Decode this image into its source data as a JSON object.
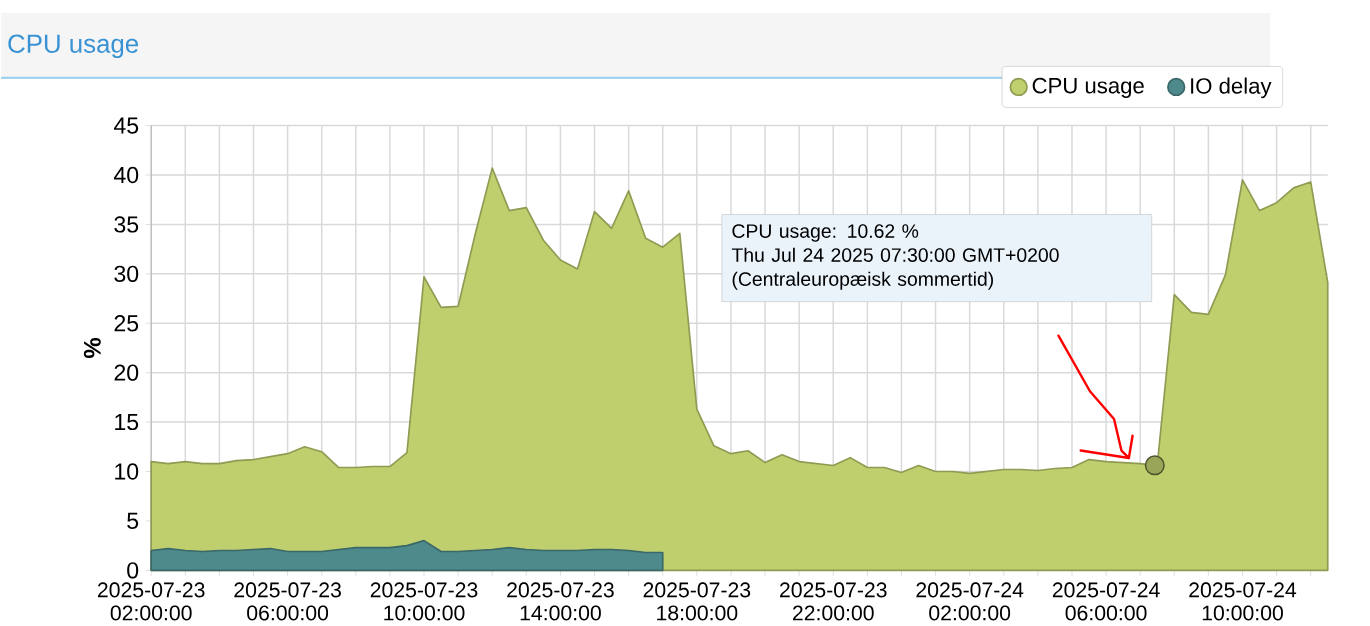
{
  "chart_data": {
    "type": "area",
    "title": "CPU usage",
    "ylabel": "%",
    "x": [
      "2025-07-23T02:00",
      "2025-07-23T02:30",
      "2025-07-23T03:00",
      "2025-07-23T03:30",
      "2025-07-23T04:00",
      "2025-07-23T04:30",
      "2025-07-23T05:00",
      "2025-07-23T05:30",
      "2025-07-23T06:00",
      "2025-07-23T06:30",
      "2025-07-23T07:00",
      "2025-07-23T07:30",
      "2025-07-23T08:00",
      "2025-07-23T08:30",
      "2025-07-23T09:00",
      "2025-07-23T09:30",
      "2025-07-23T10:00",
      "2025-07-23T10:30",
      "2025-07-23T11:00",
      "2025-07-23T11:30",
      "2025-07-23T12:00",
      "2025-07-23T12:30",
      "2025-07-23T13:00",
      "2025-07-23T13:30",
      "2025-07-23T14:00",
      "2025-07-23T14:30",
      "2025-07-23T15:00",
      "2025-07-23T15:30",
      "2025-07-23T16:00",
      "2025-07-23T16:30",
      "2025-07-23T17:00",
      "2025-07-23T17:30",
      "2025-07-23T18:00",
      "2025-07-23T18:30",
      "2025-07-23T19:00",
      "2025-07-23T19:30",
      "2025-07-23T20:00",
      "2025-07-23T20:30",
      "2025-07-23T21:00",
      "2025-07-23T21:30",
      "2025-07-23T22:00",
      "2025-07-23T22:30",
      "2025-07-23T23:00",
      "2025-07-23T23:30",
      "2025-07-24T00:00",
      "2025-07-24T00:30",
      "2025-07-24T01:00",
      "2025-07-24T01:30",
      "2025-07-24T02:00",
      "2025-07-24T02:30",
      "2025-07-24T03:00",
      "2025-07-24T03:30",
      "2025-07-24T04:00",
      "2025-07-24T04:30",
      "2025-07-24T05:00",
      "2025-07-24T05:30",
      "2025-07-24T06:00",
      "2025-07-24T06:30",
      "2025-07-24T07:00",
      "2025-07-24T07:30",
      "2025-07-24T08:00",
      "2025-07-24T08:30",
      "2025-07-24T09:00",
      "2025-07-24T09:30",
      "2025-07-24T10:00",
      "2025-07-24T10:30",
      "2025-07-24T11:00",
      "2025-07-24T11:30",
      "2025-07-24T12:00",
      "2025-07-24T12:30"
    ],
    "series": [
      {
        "name": "CPU usage",
        "color": "#bfcf6e",
        "values": [
          11.0,
          10.8,
          11.0,
          10.8,
          10.8,
          11.1,
          11.2,
          11.5,
          11.8,
          12.5,
          12.0,
          10.4,
          10.4,
          10.5,
          10.5,
          11.9,
          29.7,
          26.6,
          26.7,
          34.0,
          40.7,
          36.4,
          36.7,
          33.4,
          31.4,
          30.5,
          36.3,
          34.6,
          38.4,
          33.6,
          32.7,
          34.1,
          16.3,
          12.6,
          11.8,
          12.1,
          10.9,
          11.7,
          11.0,
          10.8,
          10.6,
          11.4,
          10.4,
          10.4,
          9.9,
          10.6,
          10.0,
          10.0,
          9.8,
          10.0,
          10.2,
          10.2,
          10.1,
          10.3,
          10.4,
          11.2,
          11.0,
          10.9,
          10.8,
          10.62,
          27.9,
          26.1,
          25.9,
          29.9,
          39.5,
          36.4,
          37.2,
          38.7,
          39.3,
          29.1
        ]
      },
      {
        "name": "IO delay",
        "color": "#4e8a8c",
        "values": [
          2.0,
          2.2,
          2.0,
          1.9,
          2.0,
          2.0,
          2.1,
          2.2,
          1.9,
          1.9,
          1.9,
          2.1,
          2.3,
          2.3,
          2.3,
          2.5,
          3.0,
          1.9,
          1.9,
          2.0,
          2.1,
          2.3,
          2.1,
          2.0,
          2.0,
          2.0,
          2.1,
          2.1,
          2.0,
          1.8,
          1.8,
          null,
          null,
          null,
          null,
          null,
          null,
          null,
          null,
          null,
          null,
          null,
          null,
          null,
          null,
          null,
          null,
          null,
          null,
          null,
          null,
          null,
          null,
          null,
          null,
          null,
          null,
          null,
          null,
          null,
          null,
          null,
          null,
          null,
          null,
          null,
          null,
          null,
          null,
          null
        ]
      }
    ],
    "xlim": [
      "2025-07-23T02:00",
      "2025-07-24T12:30"
    ],
    "xticks": [
      {
        "value": "2025-07-23T02:00",
        "label": "2025-07-23 02:00:00"
      },
      {
        "value": "2025-07-23T03:00",
        "label": null
      },
      {
        "value": "2025-07-23T04:00",
        "label": null
      },
      {
        "value": "2025-07-23T05:00",
        "label": null
      },
      {
        "value": "2025-07-23T06:00",
        "label": "2025-07-23 06:00:00"
      },
      {
        "value": "2025-07-23T07:00",
        "label": null
      },
      {
        "value": "2025-07-23T08:00",
        "label": null
      },
      {
        "value": "2025-07-23T09:00",
        "label": null
      },
      {
        "value": "2025-07-23T10:00",
        "label": "2025-07-23 10:00:00"
      },
      {
        "value": "2025-07-23T11:00",
        "label": null
      },
      {
        "value": "2025-07-23T12:00",
        "label": null
      },
      {
        "value": "2025-07-23T13:00",
        "label": null
      },
      {
        "value": "2025-07-23T14:00",
        "label": "2025-07-23 14:00:00"
      },
      {
        "value": "2025-07-23T15:00",
        "label": null
      },
      {
        "value": "2025-07-23T16:00",
        "label": null
      },
      {
        "value": "2025-07-23T17:00",
        "label": null
      },
      {
        "value": "2025-07-23T18:00",
        "label": "2025-07-23 18:00:00"
      },
      {
        "value": "2025-07-23T19:00",
        "label": null
      },
      {
        "value": "2025-07-23T20:00",
        "label": null
      },
      {
        "value": "2025-07-23T21:00",
        "label": null
      },
      {
        "value": "2025-07-23T22:00",
        "label": "2025-07-23 22:00:00"
      },
      {
        "value": "2025-07-23T23:00",
        "label": null
      },
      {
        "value": "2025-07-24T00:00",
        "label": null
      },
      {
        "value": "2025-07-24T01:00",
        "label": null
      },
      {
        "value": "2025-07-24T02:00",
        "label": "2025-07-24 02:00:00"
      },
      {
        "value": "2025-07-24T03:00",
        "label": null
      },
      {
        "value": "2025-07-24T04:00",
        "label": null
      },
      {
        "value": "2025-07-24T05:00",
        "label": null
      },
      {
        "value": "2025-07-24T06:00",
        "label": "2025-07-24 06:00:00"
      },
      {
        "value": "2025-07-24T07:00",
        "label": null
      },
      {
        "value": "2025-07-24T08:00",
        "label": null
      },
      {
        "value": "2025-07-24T09:00",
        "label": null
      },
      {
        "value": "2025-07-24T10:00",
        "label": "2025-07-24 10:00:00"
      },
      {
        "value": "2025-07-24T11:00",
        "label": null
      },
      {
        "value": "2025-07-24T12:00",
        "label": null
      }
    ],
    "ylim": [
      0,
      45
    ],
    "yticks": [
      0,
      5,
      10,
      15,
      20,
      25,
      30,
      35,
      40,
      45
    ],
    "grid": true,
    "legend": "top right",
    "annotations": [
      "CPU usage: 10.62 %",
      "Thu Jul 24 2025 07:30:00 GMT+0200 (Centraleuropæisk sommertid)"
    ]
  }
}
